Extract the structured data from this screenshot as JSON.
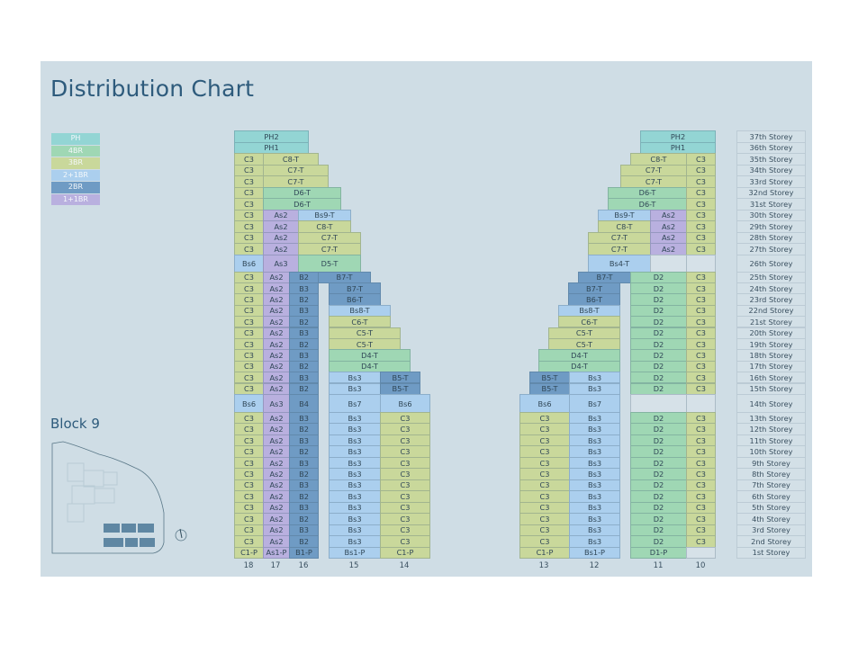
{
  "title": "Distribution Chart",
  "block_label": "Block 9",
  "legend": [
    {
      "label": "PH",
      "type": "PH"
    },
    {
      "label": "4BR",
      "type": "4BR"
    },
    {
      "label": "3BR",
      "type": "3BR"
    },
    {
      "label": "2+1BR",
      "type": "2+1BR"
    },
    {
      "label": "2BR",
      "type": "2BR"
    },
    {
      "label": "1+1BR",
      "type": "1+1BR"
    }
  ],
  "colors": {
    "PH": "#93d5d4",
    "4BR": "#9fd7b4",
    "3BR": "#c9d89b",
    "2+1BR": "#abcfee",
    "2BR": "#6f9bc4",
    "1+1BR": "#b9b0df",
    "empty": "#d6e1e8"
  },
  "stack_numbers_left": [
    "18",
    "17",
    "16",
    "15",
    "14"
  ],
  "stack_numbers_right": [
    "13",
    "12",
    "11",
    "10"
  ],
  "storeys": [
    {
      "s": 37,
      "label": "37th Storey",
      "left": [
        [
          "PH2",
          "PH"
        ]
      ],
      "right": [
        [
          "PH2",
          "PH"
        ]
      ]
    },
    {
      "s": 36,
      "label": "36th Storey",
      "left": [
        [
          "PH1",
          "PH"
        ]
      ],
      "right": [
        [
          "PH1",
          "PH"
        ]
      ]
    },
    {
      "s": 35,
      "label": "35th Storey",
      "left": [
        [
          "C3",
          "3BR"
        ],
        [
          "C8-T",
          "3BR"
        ]
      ],
      "right": [
        [
          "C8-T",
          "3BR"
        ],
        [
          "C3",
          "3BR"
        ]
      ]
    },
    {
      "s": 34,
      "label": "34th Storey",
      "left": [
        [
          "C3",
          "3BR"
        ],
        [
          "C7-T",
          "3BR"
        ]
      ],
      "right": [
        [
          "C7-T",
          "3BR"
        ],
        [
          "C3",
          "3BR"
        ]
      ]
    },
    {
      "s": 33,
      "label": "33rd Storey",
      "left": [
        [
          "C3",
          "3BR"
        ],
        [
          "C7-T",
          "3BR"
        ]
      ],
      "right": [
        [
          "C7-T",
          "3BR"
        ],
        [
          "C3",
          "3BR"
        ]
      ]
    },
    {
      "s": 32,
      "label": "32nd Storey",
      "left": [
        [
          "C3",
          "3BR"
        ],
        [
          "D6-T",
          "4BR"
        ]
      ],
      "right": [
        [
          "D6-T",
          "4BR"
        ],
        [
          "C3",
          "3BR"
        ]
      ]
    },
    {
      "s": 31,
      "label": "31st Storey",
      "left": [
        [
          "C3",
          "3BR"
        ],
        [
          "D6-T",
          "4BR"
        ]
      ],
      "right": [
        [
          "D6-T",
          "4BR"
        ],
        [
          "C3",
          "3BR"
        ]
      ]
    },
    {
      "s": 30,
      "label": "30th Storey",
      "left": [
        [
          "C3",
          "3BR"
        ],
        [
          "As2",
          "1+1BR"
        ],
        [
          "Bs9-T",
          "2+1BR"
        ]
      ],
      "right": [
        [
          "Bs9-T",
          "2+1BR"
        ],
        [
          "As2",
          "1+1BR"
        ],
        [
          "C3",
          "3BR"
        ]
      ]
    },
    {
      "s": 29,
      "label": "29th Storey",
      "left": [
        [
          "C3",
          "3BR"
        ],
        [
          "As2",
          "1+1BR"
        ],
        [
          "C8-T",
          "3BR"
        ]
      ],
      "right": [
        [
          "C8-T",
          "3BR"
        ],
        [
          "As2",
          "1+1BR"
        ],
        [
          "C3",
          "3BR"
        ]
      ]
    },
    {
      "s": 28,
      "label": "28th Storey",
      "left": [
        [
          "C3",
          "3BR"
        ],
        [
          "As2",
          "1+1BR"
        ],
        [
          "C7-T",
          "3BR"
        ]
      ],
      "right": [
        [
          "C7-T",
          "3BR"
        ],
        [
          "As2",
          "1+1BR"
        ],
        [
          "C3",
          "3BR"
        ]
      ]
    },
    {
      "s": 27,
      "label": "27th Storey",
      "left": [
        [
          "C3",
          "3BR"
        ],
        [
          "As2",
          "1+1BR"
        ],
        [
          "C7-T",
          "3BR"
        ]
      ],
      "right": [
        [
          "C7-T",
          "3BR"
        ],
        [
          "As2",
          "1+1BR"
        ],
        [
          "C3",
          "3BR"
        ]
      ]
    },
    {
      "s": 26,
      "label": "26th Storey",
      "left": [
        [
          "Bs6",
          "2+1BR"
        ],
        [
          "As3",
          "1+1BR"
        ],
        [
          "D5-T",
          "4BR"
        ]
      ],
      "right": [
        [
          "Bs4-T",
          "2+1BR"
        ],
        [
          "",
          "empty"
        ],
        [
          "",
          "empty"
        ]
      ]
    },
    {
      "s": 25,
      "label": "25th Storey",
      "left": [
        [
          "C3",
          "3BR"
        ],
        [
          "As2",
          "1+1BR"
        ],
        [
          "B2",
          "2BR"
        ],
        [
          "B7-T",
          "2BR"
        ]
      ],
      "right": [
        [
          "B7-T",
          "2BR"
        ],
        [
          "D2",
          "4BR"
        ],
        [
          "C3",
          "3BR"
        ]
      ]
    },
    {
      "s": 24,
      "label": "24th Storey",
      "left": [
        [
          "C3",
          "3BR"
        ],
        [
          "As2",
          "1+1BR"
        ],
        [
          "B3",
          "2BR"
        ],
        [
          "B7-T",
          "2BR"
        ]
      ],
      "right": [
        [
          "B7-T",
          "2BR"
        ],
        [
          "D2",
          "4BR"
        ],
        [
          "C3",
          "3BR"
        ]
      ]
    },
    {
      "s": 23,
      "label": "23rd Storey",
      "left": [
        [
          "C3",
          "3BR"
        ],
        [
          "As2",
          "1+1BR"
        ],
        [
          "B2",
          "2BR"
        ],
        [
          "B6-T",
          "2BR"
        ]
      ],
      "right": [
        [
          "B6-T",
          "2BR"
        ],
        [
          "D2",
          "4BR"
        ],
        [
          "C3",
          "3BR"
        ]
      ]
    },
    {
      "s": 22,
      "label": "22nd Storey",
      "left": [
        [
          "C3",
          "3BR"
        ],
        [
          "As2",
          "1+1BR"
        ],
        [
          "B3",
          "2BR"
        ],
        [
          "Bs8-T",
          "2+1BR"
        ]
      ],
      "right": [
        [
          "Bs8-T",
          "2+1BR"
        ],
        [
          "D2",
          "4BR"
        ],
        [
          "C3",
          "3BR"
        ]
      ]
    },
    {
      "s": 21,
      "label": "21st Storey",
      "left": [
        [
          "C3",
          "3BR"
        ],
        [
          "As2",
          "1+1BR"
        ],
        [
          "B2",
          "2BR"
        ],
        [
          "C6-T",
          "3BR"
        ]
      ],
      "right": [
        [
          "C6-T",
          "3BR"
        ],
        [
          "D2",
          "4BR"
        ],
        [
          "C3",
          "3BR"
        ]
      ]
    },
    {
      "s": 20,
      "label": "20th Storey",
      "left": [
        [
          "C3",
          "3BR"
        ],
        [
          "As2",
          "1+1BR"
        ],
        [
          "B3",
          "2BR"
        ],
        [
          "C5-T",
          "3BR"
        ]
      ],
      "right": [
        [
          "C5-T",
          "3BR"
        ],
        [
          "D2",
          "4BR"
        ],
        [
          "C3",
          "3BR"
        ]
      ]
    },
    {
      "s": 19,
      "label": "19th Storey",
      "left": [
        [
          "C3",
          "3BR"
        ],
        [
          "As2",
          "1+1BR"
        ],
        [
          "B2",
          "2BR"
        ],
        [
          "C5-T",
          "3BR"
        ]
      ],
      "right": [
        [
          "C5-T",
          "3BR"
        ],
        [
          "D2",
          "4BR"
        ],
        [
          "C3",
          "3BR"
        ]
      ]
    },
    {
      "s": 18,
      "label": "18th Storey",
      "left": [
        [
          "C3",
          "3BR"
        ],
        [
          "As2",
          "1+1BR"
        ],
        [
          "B3",
          "2BR"
        ],
        [
          "D4-T",
          "4BR"
        ]
      ],
      "right": [
        [
          "D4-T",
          "4BR"
        ],
        [
          "D2",
          "4BR"
        ],
        [
          "C3",
          "3BR"
        ]
      ]
    },
    {
      "s": 17,
      "label": "17th Storey",
      "left": [
        [
          "C3",
          "3BR"
        ],
        [
          "As2",
          "1+1BR"
        ],
        [
          "B2",
          "2BR"
        ],
        [
          "D4-T",
          "4BR"
        ]
      ],
      "right": [
        [
          "D4-T",
          "4BR"
        ],
        [
          "D2",
          "4BR"
        ],
        [
          "C3",
          "3BR"
        ]
      ]
    },
    {
      "s": 16,
      "label": "16th Storey",
      "left": [
        [
          "C3",
          "3BR"
        ],
        [
          "As2",
          "1+1BR"
        ],
        [
          "B3",
          "2BR"
        ],
        [
          "Bs3",
          "2+1BR"
        ],
        [
          "B5-T",
          "2BR"
        ]
      ],
      "right": [
        [
          "B5-T",
          "2BR"
        ],
        [
          "Bs3",
          "2+1BR"
        ],
        [
          "D2",
          "4BR"
        ],
        [
          "C3",
          "3BR"
        ]
      ]
    },
    {
      "s": 15,
      "label": "15th Storey",
      "left": [
        [
          "C3",
          "3BR"
        ],
        [
          "As2",
          "1+1BR"
        ],
        [
          "B2",
          "2BR"
        ],
        [
          "Bs3",
          "2+1BR"
        ],
        [
          "B5-T",
          "2BR"
        ]
      ],
      "right": [
        [
          "B5-T",
          "2BR"
        ],
        [
          "Bs3",
          "2+1BR"
        ],
        [
          "D2",
          "4BR"
        ],
        [
          "C3",
          "3BR"
        ]
      ]
    },
    {
      "s": 14,
      "label": "14th Storey",
      "left": [
        [
          "Bs6",
          "2+1BR"
        ],
        [
          "As3",
          "1+1BR"
        ],
        [
          "B4",
          "2BR"
        ],
        [
          "Bs7",
          "2+1BR"
        ],
        [
          "Bs6",
          "2+1BR"
        ]
      ],
      "right": [
        [
          "Bs6",
          "2+1BR"
        ],
        [
          "Bs7",
          "2+1BR"
        ],
        [
          "",
          "empty"
        ],
        [
          "",
          "empty"
        ]
      ]
    },
    {
      "s": 13,
      "label": "13th Storey",
      "left": [
        [
          "C3",
          "3BR"
        ],
        [
          "As2",
          "1+1BR"
        ],
        [
          "B3",
          "2BR"
        ],
        [
          "Bs3",
          "2+1BR"
        ],
        [
          "C3",
          "3BR"
        ]
      ],
      "right": [
        [
          "C3",
          "3BR"
        ],
        [
          "Bs3",
          "2+1BR"
        ],
        [
          "D2",
          "4BR"
        ],
        [
          "C3",
          "3BR"
        ]
      ]
    },
    {
      "s": 12,
      "label": "12th Storey",
      "left": [
        [
          "C3",
          "3BR"
        ],
        [
          "As2",
          "1+1BR"
        ],
        [
          "B2",
          "2BR"
        ],
        [
          "Bs3",
          "2+1BR"
        ],
        [
          "C3",
          "3BR"
        ]
      ],
      "right": [
        [
          "C3",
          "3BR"
        ],
        [
          "Bs3",
          "2+1BR"
        ],
        [
          "D2",
          "4BR"
        ],
        [
          "C3",
          "3BR"
        ]
      ]
    },
    {
      "s": 11,
      "label": "11th Storey",
      "left": [
        [
          "C3",
          "3BR"
        ],
        [
          "As2",
          "1+1BR"
        ],
        [
          "B3",
          "2BR"
        ],
        [
          "Bs3",
          "2+1BR"
        ],
        [
          "C3",
          "3BR"
        ]
      ],
      "right": [
        [
          "C3",
          "3BR"
        ],
        [
          "Bs3",
          "2+1BR"
        ],
        [
          "D2",
          "4BR"
        ],
        [
          "C3",
          "3BR"
        ]
      ]
    },
    {
      "s": 10,
      "label": "10th Storey",
      "left": [
        [
          "C3",
          "3BR"
        ],
        [
          "As2",
          "1+1BR"
        ],
        [
          "B2",
          "2BR"
        ],
        [
          "Bs3",
          "2+1BR"
        ],
        [
          "C3",
          "3BR"
        ]
      ],
      "right": [
        [
          "C3",
          "3BR"
        ],
        [
          "Bs3",
          "2+1BR"
        ],
        [
          "D2",
          "4BR"
        ],
        [
          "C3",
          "3BR"
        ]
      ]
    },
    {
      "s": 9,
      "label": "9th Storey",
      "left": [
        [
          "C3",
          "3BR"
        ],
        [
          "As2",
          "1+1BR"
        ],
        [
          "B3",
          "2BR"
        ],
        [
          "Bs3",
          "2+1BR"
        ],
        [
          "C3",
          "3BR"
        ]
      ],
      "right": [
        [
          "C3",
          "3BR"
        ],
        [
          "Bs3",
          "2+1BR"
        ],
        [
          "D2",
          "4BR"
        ],
        [
          "C3",
          "3BR"
        ]
      ]
    },
    {
      "s": 8,
      "label": "8th Storey",
      "left": [
        [
          "C3",
          "3BR"
        ],
        [
          "As2",
          "1+1BR"
        ],
        [
          "B2",
          "2BR"
        ],
        [
          "Bs3",
          "2+1BR"
        ],
        [
          "C3",
          "3BR"
        ]
      ],
      "right": [
        [
          "C3",
          "3BR"
        ],
        [
          "Bs3",
          "2+1BR"
        ],
        [
          "D2",
          "4BR"
        ],
        [
          "C3",
          "3BR"
        ]
      ]
    },
    {
      "s": 7,
      "label": "7th Storey",
      "left": [
        [
          "C3",
          "3BR"
        ],
        [
          "As2",
          "1+1BR"
        ],
        [
          "B3",
          "2BR"
        ],
        [
          "Bs3",
          "2+1BR"
        ],
        [
          "C3",
          "3BR"
        ]
      ],
      "right": [
        [
          "C3",
          "3BR"
        ],
        [
          "Bs3",
          "2+1BR"
        ],
        [
          "D2",
          "4BR"
        ],
        [
          "C3",
          "3BR"
        ]
      ]
    },
    {
      "s": 6,
      "label": "6th Storey",
      "left": [
        [
          "C3",
          "3BR"
        ],
        [
          "As2",
          "1+1BR"
        ],
        [
          "B2",
          "2BR"
        ],
        [
          "Bs3",
          "2+1BR"
        ],
        [
          "C3",
          "3BR"
        ]
      ],
      "right": [
        [
          "C3",
          "3BR"
        ],
        [
          "Bs3",
          "2+1BR"
        ],
        [
          "D2",
          "4BR"
        ],
        [
          "C3",
          "3BR"
        ]
      ]
    },
    {
      "s": 5,
      "label": "5th Storey",
      "left": [
        [
          "C3",
          "3BR"
        ],
        [
          "As2",
          "1+1BR"
        ],
        [
          "B3",
          "2BR"
        ],
        [
          "Bs3",
          "2+1BR"
        ],
        [
          "C3",
          "3BR"
        ]
      ],
      "right": [
        [
          "C3",
          "3BR"
        ],
        [
          "Bs3",
          "2+1BR"
        ],
        [
          "D2",
          "4BR"
        ],
        [
          "C3",
          "3BR"
        ]
      ]
    },
    {
      "s": 4,
      "label": "4th Storey",
      "left": [
        [
          "C3",
          "3BR"
        ],
        [
          "As2",
          "1+1BR"
        ],
        [
          "B2",
          "2BR"
        ],
        [
          "Bs3",
          "2+1BR"
        ],
        [
          "C3",
          "3BR"
        ]
      ],
      "right": [
        [
          "C3",
          "3BR"
        ],
        [
          "Bs3",
          "2+1BR"
        ],
        [
          "D2",
          "4BR"
        ],
        [
          "C3",
          "3BR"
        ]
      ]
    },
    {
      "s": 3,
      "label": "3rd Storey",
      "left": [
        [
          "C3",
          "3BR"
        ],
        [
          "As2",
          "1+1BR"
        ],
        [
          "B3",
          "2BR"
        ],
        [
          "Bs3",
          "2+1BR"
        ],
        [
          "C3",
          "3BR"
        ]
      ],
      "right": [
        [
          "C3",
          "3BR"
        ],
        [
          "Bs3",
          "2+1BR"
        ],
        [
          "D2",
          "4BR"
        ],
        [
          "C3",
          "3BR"
        ]
      ]
    },
    {
      "s": 2,
      "label": "2nd Storey",
      "left": [
        [
          "C3",
          "3BR"
        ],
        [
          "As2",
          "1+1BR"
        ],
        [
          "B2",
          "2BR"
        ],
        [
          "Bs3",
          "2+1BR"
        ],
        [
          "C3",
          "3BR"
        ]
      ],
      "right": [
        [
          "C3",
          "3BR"
        ],
        [
          "Bs3",
          "2+1BR"
        ],
        [
          "D2",
          "4BR"
        ],
        [
          "C3",
          "3BR"
        ]
      ]
    },
    {
      "s": 1,
      "label": "1st Storey",
      "left": [
        [
          "C1-P",
          "3BR"
        ],
        [
          "As1-P",
          "1+1BR"
        ],
        [
          "B1-P",
          "2BR"
        ],
        [
          "Bs1-P",
          "2+1BR"
        ],
        [
          "C1-P",
          "3BR"
        ]
      ],
      "right": [
        [
          "C1-P",
          "3BR"
        ],
        [
          "Bs1-P",
          "2+1BR"
        ],
        [
          "D1-P",
          "4BR"
        ],
        [
          "",
          "empty"
        ]
      ]
    }
  ]
}
